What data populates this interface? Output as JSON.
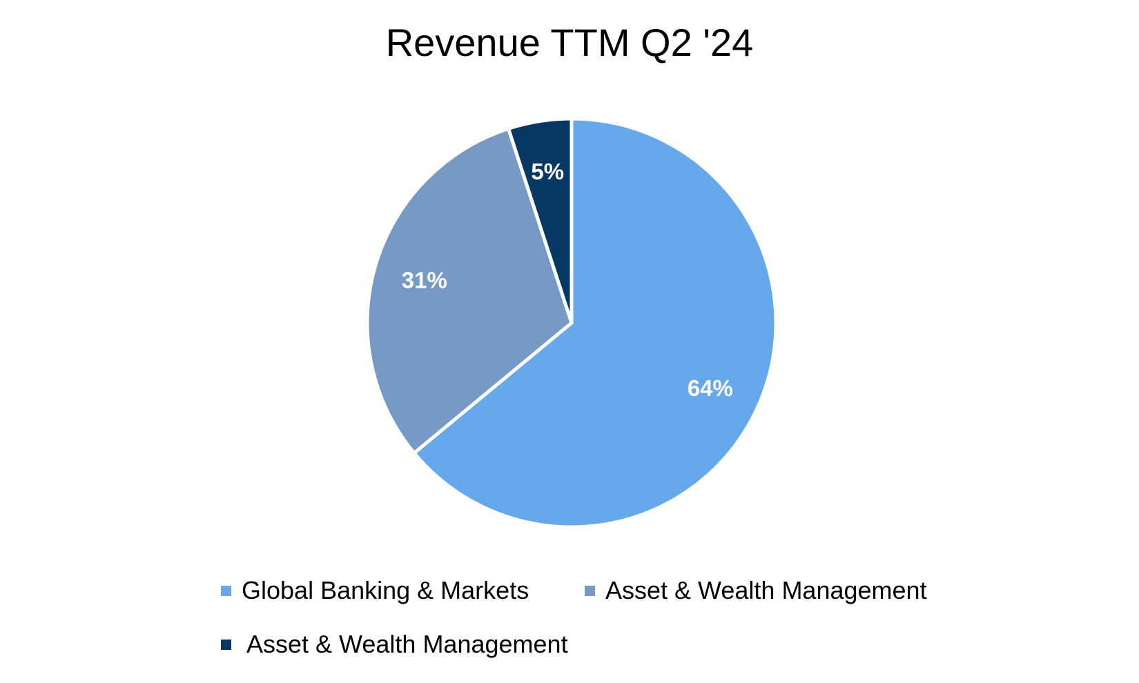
{
  "chart_data": {
    "type": "pie",
    "title": "Revenue TTM Q2 '24",
    "categories": [
      "Global Banking & Markets",
      "Asset & Wealth Management",
      "Asset & Wealth Management"
    ],
    "values": [
      64,
      31,
      5
    ],
    "data_labels": [
      "64%",
      "31%",
      "5%"
    ],
    "colors": [
      "#65A8EC",
      "#7699C5",
      "#073763"
    ],
    "legend_position": "bottom",
    "start_angle": "12 o'clock, clockwise"
  }
}
